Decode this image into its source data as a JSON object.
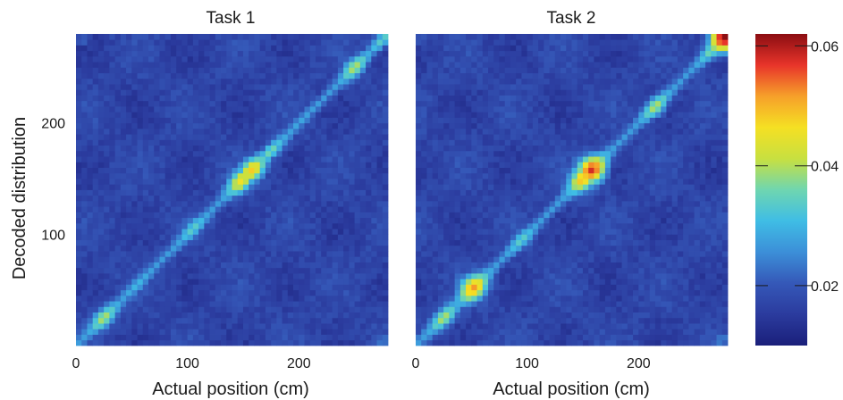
{
  "chart_data": [
    {
      "type": "heatmap",
      "title": "Task 1",
      "xlabel": "Actual position (cm)",
      "ylabel": "Decoded distribution",
      "xlim": [
        0,
        280
      ],
      "ylim": [
        0,
        280
      ],
      "xticks": [
        0,
        100,
        200
      ],
      "yticks": [
        100,
        200
      ],
      "grid_bins": 56,
      "diagonal_peaks": [
        {
          "pos": 25,
          "value": 0.04
        },
        {
          "pos": 55,
          "value": 0.03
        },
        {
          "pos": 105,
          "value": 0.034
        },
        {
          "pos": 148,
          "value": 0.046
        },
        {
          "pos": 158,
          "value": 0.048
        },
        {
          "pos": 175,
          "value": 0.036
        },
        {
          "pos": 200,
          "value": 0.028
        },
        {
          "pos": 250,
          "value": 0.04
        },
        {
          "pos": 275,
          "value": 0.034
        }
      ],
      "diagonal_baseline": 0.027,
      "background_value": 0.017
    },
    {
      "type": "heatmap",
      "title": "Task 2",
      "xlabel": "Actual position (cm)",
      "ylabel": "",
      "xlim": [
        0,
        280
      ],
      "ylim": [
        0,
        280
      ],
      "xticks": [
        0,
        100,
        200
      ],
      "yticks": [],
      "grid_bins": 56,
      "diagonal_peaks": [
        {
          "pos": 25,
          "value": 0.04
        },
        {
          "pos": 52,
          "value": 0.052
        },
        {
          "pos": 95,
          "value": 0.034
        },
        {
          "pos": 150,
          "value": 0.05
        },
        {
          "pos": 158,
          "value": 0.058
        },
        {
          "pos": 215,
          "value": 0.04
        },
        {
          "pos": 265,
          "value": 0.036
        },
        {
          "pos": 277,
          "value": 0.062
        }
      ],
      "diagonal_baseline": 0.027,
      "background_value": 0.017
    }
  ],
  "colorbar": {
    "min": 0.01,
    "max": 0.062,
    "ticks": [
      {
        "value": 0.02,
        "label": "0.02"
      },
      {
        "value": 0.04,
        "label": "0.04"
      },
      {
        "value": 0.06,
        "label": "0.06"
      }
    ],
    "colormap": [
      "#1a1f7a",
      "#2b3b9e",
      "#3558b8",
      "#3c8fd8",
      "#3fbde5",
      "#6fd6b0",
      "#c8e040",
      "#f5e023",
      "#f6a02a",
      "#e8342a",
      "#8b0d12"
    ]
  }
}
